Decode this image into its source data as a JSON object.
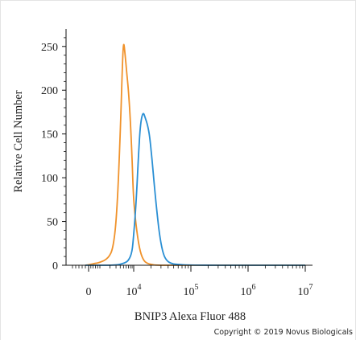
{
  "chart_data": {
    "type": "line",
    "xlabel": "BNIP3 Alexa Fluor 488",
    "ylabel": "Relative Cell Number",
    "x_scale": "biexponential",
    "xlim": [
      -1000,
      10000000
    ],
    "ylim": [
      0,
      270
    ],
    "yticks": [
      0,
      50,
      100,
      150,
      200,
      250
    ],
    "xticks": [
      {
        "value": 0,
        "base": "0",
        "exp": ""
      },
      {
        "value": 10000,
        "base": "10",
        "exp": "4"
      },
      {
        "value": 100000,
        "base": "10",
        "exp": "5"
      },
      {
        "value": 1000000,
        "base": "10",
        "exp": "6"
      },
      {
        "value": 10000000,
        "base": "10",
        "exp": "7"
      }
    ],
    "series": [
      {
        "color": "#f0922b",
        "x": [
          -200,
          200,
          500,
          1000,
          1800,
          2500,
          3200,
          4000,
          4600,
          5000,
          5600,
          6200,
          7000,
          8000,
          9000,
          10000,
          11500,
          13000,
          15000,
          17500,
          20000,
          25000,
          50000,
          200000,
          10000000
        ],
        "y": [
          0,
          1,
          2,
          3,
          8,
          20,
          60,
          150,
          225,
          258,
          240,
          220,
          200,
          165,
          120,
          70,
          35,
          15,
          5,
          2,
          1,
          0,
          0,
          0,
          0
        ]
      },
      {
        "color": "#2a8fd4",
        "x": [
          -200,
          500,
          1000,
          3000,
          5000,
          7000,
          9000,
          10000,
          11000,
          12000,
          13000,
          14500,
          16000,
          17500,
          19000,
          21000,
          23000,
          26000,
          29000,
          33000,
          38000,
          45000,
          55000,
          100000,
          1000000,
          10000000
        ],
        "y": [
          0,
          0,
          0,
          0,
          2,
          5,
          15,
          35,
          70,
          120,
          160,
          176,
          168,
          160,
          148,
          120,
          90,
          55,
          30,
          12,
          5,
          2,
          1,
          0,
          0,
          0
        ]
      }
    ]
  },
  "copyright": "Copyright © 2019 Novus Biologicals"
}
